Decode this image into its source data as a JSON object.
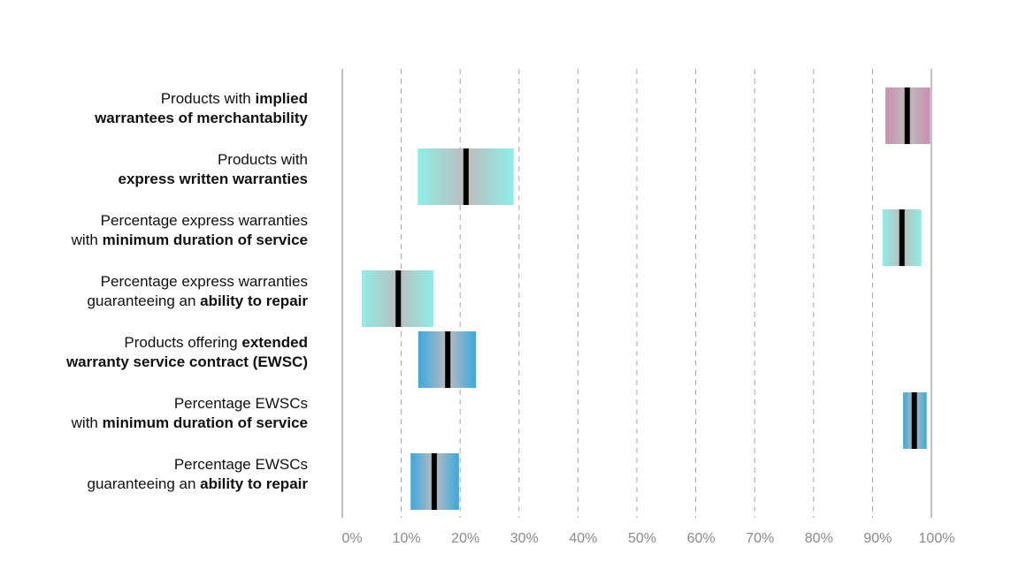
{
  "chart_data": {
    "type": "floating-range-bar",
    "title": "",
    "xlabel": "",
    "ylabel": "",
    "xlim": [
      0,
      100
    ],
    "x_ticks": [
      0,
      10,
      20,
      30,
      40,
      50,
      60,
      70,
      80,
      90,
      100
    ],
    "x_tick_labels": [
      "0%",
      "10%",
      "20%",
      "30%",
      "40%",
      "50%",
      "60%",
      "70%",
      "80%",
      "90%",
      "100%"
    ],
    "grid": "vertical dashed",
    "legend": "none",
    "categories": [
      {
        "label_lines": [
          [
            {
              "text": "Products with ",
              "bold": false
            },
            {
              "text": "implied",
              "bold": true
            }
          ],
          [
            {
              "text": "warrantees of merchantability",
              "bold": true
            }
          ]
        ],
        "low": 92.2,
        "median": 95.9,
        "high": 99.8,
        "color": "#cc8fb0"
      },
      {
        "label_lines": [
          [
            {
              "text": "Products with",
              "bold": false
            }
          ],
          [
            {
              "text": "express written warranties",
              "bold": true
            }
          ]
        ],
        "low": 12.8,
        "median": 21.0,
        "high": 29.1,
        "color": "#8eeee6"
      },
      {
        "label_lines": [
          [
            {
              "text": "Percentage express warranties",
              "bold": false
            }
          ],
          [
            {
              "text": "with ",
              "bold": false
            },
            {
              "text": "minimum duration of service",
              "bold": true
            }
          ]
        ],
        "low": 91.7,
        "median": 95.0,
        "high": 98.3,
        "color": "#8eeee6"
      },
      {
        "label_lines": [
          [
            {
              "text": "Percentage express warranties",
              "bold": false
            }
          ],
          [
            {
              "text": "guaranteeing an ",
              "bold": false
            },
            {
              "text": "ability to repair",
              "bold": true
            }
          ]
        ],
        "low": 3.3,
        "median": 9.5,
        "high": 15.5,
        "color": "#8eeee6"
      },
      {
        "label_lines": [
          [
            {
              "text": "Products offering ",
              "bold": false
            },
            {
              "text": "extended",
              "bold": true
            }
          ],
          [
            {
              "text": "warranty service contract (EWSC)",
              "bold": true
            }
          ]
        ],
        "low": 12.9,
        "median": 17.9,
        "high": 22.7,
        "color": "#3aa8e2"
      },
      {
        "label_lines": [
          [
            {
              "text": "Percentage EWSCs",
              "bold": false
            }
          ],
          [
            {
              "text": "with ",
              "bold": false
            },
            {
              "text": "minimum duration of service",
              "bold": true
            }
          ]
        ],
        "low": 95.2,
        "median": 97.1,
        "high": 99.2,
        "color": "#3aa8e2"
      },
      {
        "label_lines": [
          [
            {
              "text": "Percentage EWSCs",
              "bold": false
            }
          ],
          [
            {
              "text": "guaranteeing an ",
              "bold": false
            },
            {
              "text": "ability to repair",
              "bold": true
            }
          ]
        ],
        "low": 11.6,
        "median": 15.6,
        "high": 19.8,
        "color": "#3aa8e2"
      }
    ],
    "center_color": "#bcbcbc",
    "median_color": "#000000"
  }
}
